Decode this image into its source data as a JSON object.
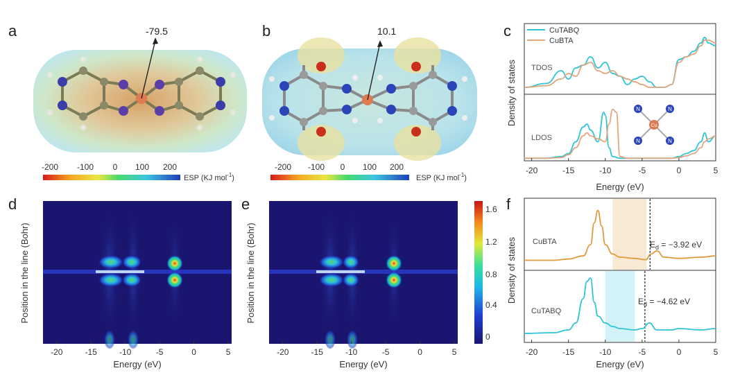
{
  "panels": {
    "a": {
      "letter": "a",
      "arrow_value": "-79.5",
      "colorbar_ticks": [
        "-200",
        "-100",
        "0",
        "100",
        "200"
      ],
      "colorbar_label": "ESP (KJ mol",
      "colorbar_label_sup": "-1",
      "colorbar_label_end": ")"
    },
    "b": {
      "letter": "b",
      "arrow_value": "10.1",
      "colorbar_ticks": [
        "-200",
        "-100",
        "0",
        "100",
        "200"
      ],
      "colorbar_label": "ESP (KJ mol",
      "colorbar_label_sup": "-1",
      "colorbar_label_end": ")"
    },
    "c": {
      "letter": "c",
      "legend": [
        "CuTABQ",
        "CuBTA"
      ],
      "tdos_label": "TDOS",
      "ldos_label": "LDOS",
      "ylabel": "Density of states",
      "xlabel": "Energy (eV)",
      "xticks": [
        "-20",
        "-15",
        "-10",
        "-5",
        "0",
        "5"
      ],
      "inset_atoms": [
        "N",
        "N",
        "N",
        "N",
        "Cu"
      ]
    },
    "d": {
      "letter": "d",
      "ylabel": "Position in the line (Bohr)",
      "xlabel": "Energy (eV)",
      "xticks": [
        "-20",
        "-15",
        "-10",
        "-5",
        "0",
        "5"
      ]
    },
    "e": {
      "letter": "e",
      "ylabel": "Position in the line (Bohr)",
      "xlabel": "Energy (eV)",
      "xticks": [
        "-20",
        "-15",
        "-10",
        "-5",
        "0",
        "5"
      ],
      "colorbar_ticks": [
        "1.6",
        "1.2",
        "0.8",
        "0.4",
        "0"
      ]
    },
    "f": {
      "letter": "f",
      "ylabel": "Density of states",
      "xlabel": "Energy (eV)",
      "xticks": [
        "-20",
        "-15",
        "-10",
        "-5",
        "0",
        "5"
      ],
      "top_label": "CuBTA",
      "bottom_label": "CuTABQ",
      "top_ed_prefix": "E",
      "top_ed_sub": "d",
      "top_ed_value": " = −3.92 eV",
      "bottom_ed_prefix": "E",
      "bottom_ed_sub": "d",
      "bottom_ed_value": " = −4.62 eV"
    }
  },
  "colors": {
    "cutabq": "#2fc4d6",
    "cubta": "#e0a77f",
    "cubta_f": "#e09a3a",
    "heatmap_bg": "#1a1670"
  },
  "chart_data": [
    {
      "panel": "c",
      "type": "line",
      "xlabel": "Energy (eV)",
      "ylabel": "Density of states",
      "xlim": [
        -21,
        5
      ],
      "series": [
        {
          "name": "CuTABQ",
          "subplot": "TDOS",
          "x": [
            -21,
            -18,
            -16,
            -15,
            -14,
            -13,
            -12,
            -11,
            -10,
            -9,
            -8,
            -7,
            -6,
            -5,
            -4,
            -3,
            -2,
            -1,
            0,
            1,
            2,
            3,
            3.5,
            4,
            5
          ],
          "y": [
            0.05,
            0.12,
            0.35,
            0.2,
            0.4,
            0.45,
            0.6,
            0.4,
            0.5,
            0.3,
            0.25,
            0.1,
            0.2,
            0.25,
            0.15,
            0.05,
            0.05,
            0.1,
            0.55,
            0.6,
            0.7,
            0.85,
            0.95,
            0.85,
            0.8
          ]
        },
        {
          "name": "CuBTA",
          "subplot": "TDOS",
          "x": [
            -21,
            -18,
            -16,
            -15,
            -14,
            -13,
            -12,
            -11,
            -10,
            -9,
            -8,
            -7,
            -6,
            -5,
            -4,
            -3,
            -2,
            -1,
            0,
            1,
            2,
            3,
            3.5,
            4,
            5
          ],
          "y": [
            0.05,
            0.08,
            0.2,
            0.3,
            0.25,
            0.45,
            0.5,
            0.35,
            0.3,
            0.35,
            0.25,
            0.2,
            0.15,
            0.1,
            0.05,
            0.05,
            0.05,
            0.1,
            0.5,
            0.6,
            0.65,
            0.8,
            0.9,
            0.9,
            0.85
          ]
        },
        {
          "name": "CuTABQ",
          "subplot": "LDOS",
          "x": [
            -21,
            -18,
            -16,
            -15,
            -14,
            -13,
            -12.5,
            -12,
            -11,
            -10.2,
            -10,
            -9.5,
            -9,
            -8,
            -7,
            -5,
            -3,
            -1,
            0,
            1,
            2,
            3,
            3.5,
            4,
            5
          ],
          "y": [
            0.02,
            0.02,
            0.05,
            0.1,
            0.3,
            0.55,
            0.6,
            0.5,
            0.3,
            0.8,
            0.75,
            0.2,
            0.05,
            0.02,
            0.02,
            0.02,
            0.02,
            0.02,
            0.05,
            0.1,
            0.15,
            0.3,
            0.45,
            0.3,
            0.4
          ]
        },
        {
          "name": "CuBTA",
          "subplot": "LDOS",
          "x": [
            -21,
            -18,
            -16,
            -15,
            -14,
            -13,
            -12.5,
            -12,
            -11,
            -10,
            -9.5,
            -9,
            -8.5,
            -8,
            -7,
            -5,
            -3,
            -1,
            0,
            1,
            2,
            3,
            3.5,
            4,
            5
          ],
          "y": [
            0.02,
            0.02,
            0.03,
            0.08,
            0.2,
            0.4,
            0.45,
            0.4,
            0.35,
            0.3,
            0.6,
            0.85,
            0.8,
            0.05,
            0.02,
            0.02,
            0.02,
            0.02,
            0.03,
            0.06,
            0.1,
            0.2,
            0.3,
            0.35,
            0.4
          ]
        }
      ]
    },
    {
      "panel": "f",
      "type": "line",
      "xlabel": "Energy (eV)",
      "ylabel": "Density of states",
      "xlim": [
        -21,
        5
      ],
      "series": [
        {
          "name": "CuBTA",
          "x": [
            -21,
            -17,
            -15,
            -13,
            -12,
            -11.5,
            -11,
            -10.5,
            -10,
            -9,
            -8,
            -6,
            -4.5,
            -3.8,
            -3,
            -2,
            0,
            3,
            5
          ],
          "y": [
            0.05,
            0.05,
            0.07,
            0.12,
            0.3,
            0.65,
            0.85,
            0.6,
            0.3,
            0.15,
            0.1,
            0.08,
            0.06,
            0.15,
            0.2,
            0.1,
            0.08,
            0.1,
            0.12
          ],
          "ed": -3.92,
          "shade": [
            -9,
            -4.4
          ]
        },
        {
          "name": "CuTABQ",
          "x": [
            -21,
            -17,
            -15,
            -14,
            -13,
            -12.5,
            -12,
            -11.5,
            -11,
            -10,
            -9,
            -8,
            -6,
            -5,
            -4,
            -3,
            -1,
            0,
            3,
            5
          ],
          "y": [
            0.05,
            0.06,
            0.1,
            0.2,
            0.55,
            0.8,
            0.85,
            0.5,
            0.3,
            0.2,
            0.15,
            0.12,
            0.1,
            0.12,
            0.2,
            0.1,
            0.1,
            0.12,
            0.1,
            0.12
          ],
          "ed": -4.62,
          "shade": [
            -10,
            -6
          ]
        }
      ]
    }
  ]
}
